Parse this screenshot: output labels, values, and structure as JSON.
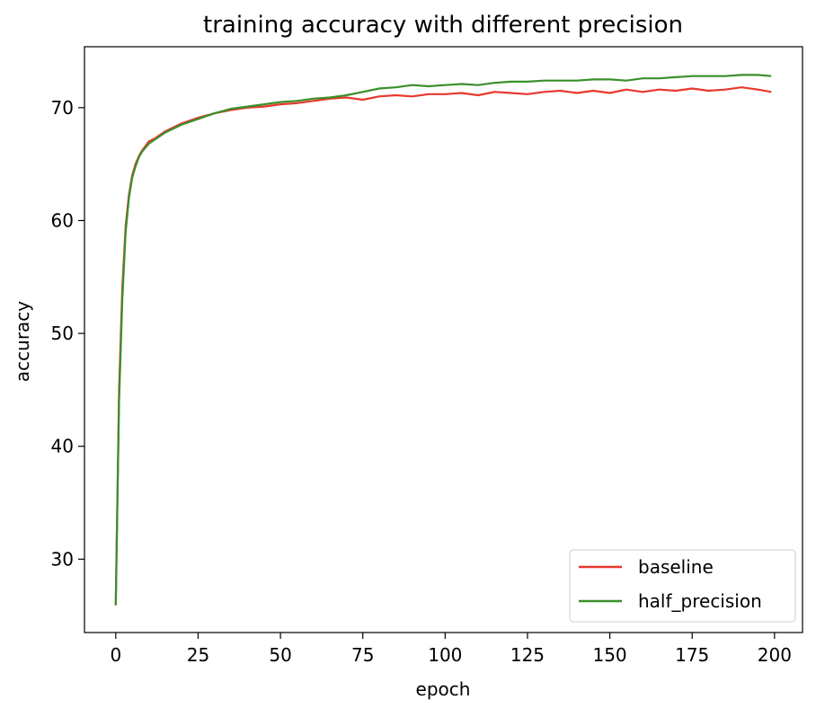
{
  "chart_data": {
    "type": "line",
    "title": "training accuracy with different precision",
    "xlabel": "epoch",
    "ylabel": "accuracy",
    "xlim": [
      -9.5,
      208.5
    ],
    "ylim": [
      23.5,
      75.4
    ],
    "xticks": [
      0,
      25,
      50,
      75,
      100,
      125,
      150,
      175,
      200
    ],
    "yticks": [
      30,
      40,
      50,
      60,
      70
    ],
    "grid": false,
    "legend": {
      "location": "lower right"
    },
    "series": [
      {
        "name": "baseline",
        "color": "#e8382d",
        "x": [
          0,
          1,
          2,
          3,
          4,
          5,
          6,
          7,
          8,
          10,
          12,
          15,
          20,
          25,
          30,
          35,
          40,
          45,
          50,
          55,
          60,
          65,
          70,
          75,
          80,
          85,
          90,
          95,
          100,
          105,
          110,
          115,
          120,
          125,
          130,
          135,
          140,
          145,
          150,
          155,
          160,
          165,
          170,
          175,
          180,
          185,
          190,
          195,
          199
        ],
        "y": [
          26,
          45,
          54,
          59.5,
          62.3,
          64,
          65,
          65.7,
          66.2,
          67,
          67.3,
          67.9,
          68.6,
          69.1,
          69.5,
          69.8,
          70.0,
          70.1,
          70.3,
          70.4,
          70.6,
          70.8,
          70.9,
          70.7,
          71.0,
          71.1,
          71.0,
          71.2,
          71.2,
          71.3,
          71.1,
          71.4,
          71.3,
          71.2,
          71.4,
          71.5,
          71.3,
          71.5,
          71.3,
          71.6,
          71.4,
          71.6,
          71.5,
          71.7,
          71.5,
          71.6,
          71.8,
          71.6,
          71.4
        ]
      },
      {
        "name": "half_precision",
        "color": "#3a8f2b",
        "x": [
          0,
          1,
          2,
          3,
          4,
          5,
          6,
          7,
          8,
          10,
          12,
          15,
          20,
          25,
          30,
          35,
          40,
          45,
          50,
          55,
          60,
          65,
          70,
          75,
          80,
          85,
          90,
          95,
          100,
          105,
          110,
          115,
          120,
          125,
          130,
          135,
          140,
          145,
          150,
          155,
          160,
          165,
          170,
          175,
          180,
          185,
          190,
          195,
          199
        ],
        "y": [
          25.9,
          44,
          53,
          59,
          62,
          63.8,
          64.8,
          65.6,
          66.1,
          66.8,
          67.2,
          67.8,
          68.5,
          69.0,
          69.5,
          69.9,
          70.1,
          70.3,
          70.5,
          70.6,
          70.8,
          70.9,
          71.1,
          71.4,
          71.7,
          71.8,
          72.0,
          71.9,
          72.0,
          72.1,
          72.0,
          72.2,
          72.3,
          72.3,
          72.4,
          72.4,
          72.4,
          72.5,
          72.5,
          72.4,
          72.6,
          72.6,
          72.7,
          72.8,
          72.8,
          72.8,
          72.9,
          72.9,
          72.8
        ]
      }
    ]
  }
}
